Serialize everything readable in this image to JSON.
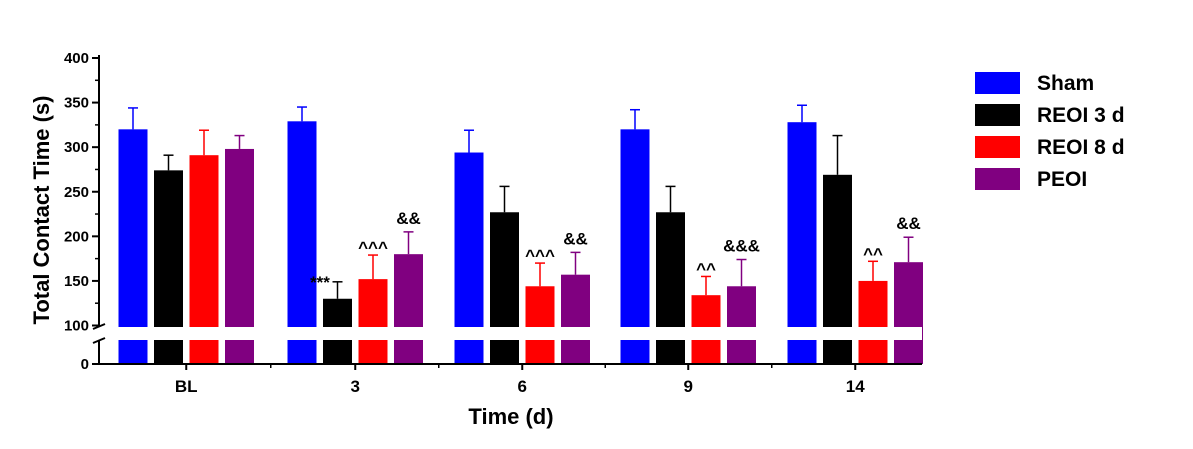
{
  "chart_data": {
    "type": "bar",
    "title": "",
    "xlabel": "Time (d)",
    "ylabel": "Total Contact Time (s)",
    "categories": [
      "BL",
      "3",
      "6",
      "9",
      "14"
    ],
    "ylim": [
      0,
      400
    ],
    "axis_break": [
      0,
      100
    ],
    "yticks": [
      0,
      100,
      150,
      200,
      250,
      300,
      350,
      400
    ],
    "ytick_labels": [
      "0",
      "100",
      "150",
      "200",
      "250",
      "300",
      "350",
      "400"
    ],
    "legend_position": "right",
    "series": [
      {
        "name": "Sham",
        "color": "#0000ff",
        "values": [
          320,
          329,
          294,
          320,
          328
        ],
        "errors": [
          24,
          16,
          25,
          22,
          19
        ]
      },
      {
        "name": "REOI 3 d",
        "color": "#000000",
        "values": [
          274,
          130,
          227,
          227,
          269
        ],
        "errors": [
          17,
          19,
          29,
          29,
          44
        ]
      },
      {
        "name": "REOI 8 d",
        "color": "#ff0000",
        "values": [
          291,
          152,
          144,
          134,
          150
        ],
        "errors": [
          28,
          27,
          26,
          21,
          22
        ]
      },
      {
        "name": "PEOI",
        "color": "#800080",
        "values": [
          298,
          180,
          157,
          144,
          171
        ],
        "errors": [
          15,
          25,
          25,
          30,
          28
        ]
      }
    ],
    "annotations": [
      {
        "category": 1,
        "series": 1,
        "text": "***"
      },
      {
        "category": 1,
        "series": 2,
        "text": "^^^"
      },
      {
        "category": 1,
        "series": 3,
        "text": "&&"
      },
      {
        "category": 2,
        "series": 2,
        "text": "^^^"
      },
      {
        "category": 2,
        "series": 3,
        "text": "&&"
      },
      {
        "category": 3,
        "series": 2,
        "text": "^^"
      },
      {
        "category": 3,
        "series": 3,
        "text": "&&&"
      },
      {
        "category": 4,
        "series": 2,
        "text": "^^"
      },
      {
        "category": 4,
        "series": 3,
        "text": "&&"
      }
    ]
  }
}
